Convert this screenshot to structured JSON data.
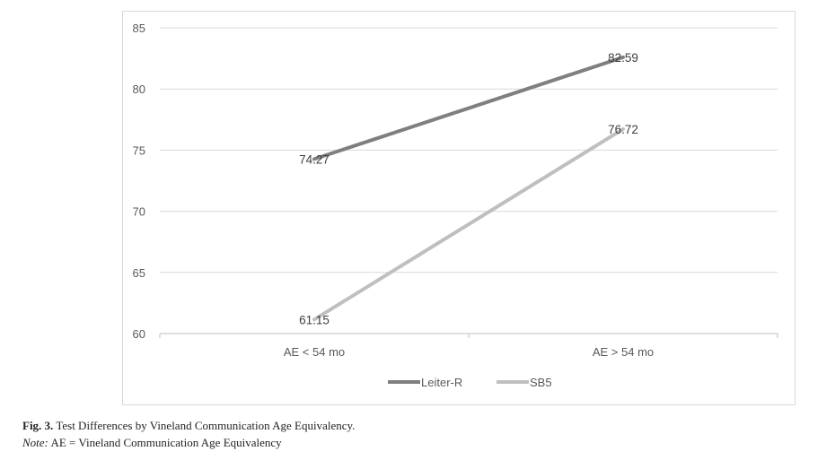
{
  "chart_data": {
    "type": "line",
    "categories": [
      "AE < 54 mo",
      "AE > 54 mo"
    ],
    "series": [
      {
        "name": "Leiter-R",
        "values": [
          74.27,
          82.59
        ],
        "labels": [
          "74.27",
          "82.59"
        ],
        "color": "#7f7f7f"
      },
      {
        "name": "SB5",
        "values": [
          61.15,
          76.72
        ],
        "labels": [
          "61.15",
          "76.72"
        ],
        "color": "#bfbfbf"
      }
    ],
    "ylim": [
      60,
      85
    ],
    "yticks": [
      "85",
      "80",
      "75",
      "70",
      "65",
      "60"
    ],
    "grid": true,
    "legend": "bottom"
  },
  "caption": {
    "fig_label": "Fig. 3.",
    "fig_text": "Test Differences by Vineland Communication Age Equivalency.",
    "note_label": "Note:",
    "note_text": "AE = Vineland Communication Age Equivalency"
  }
}
